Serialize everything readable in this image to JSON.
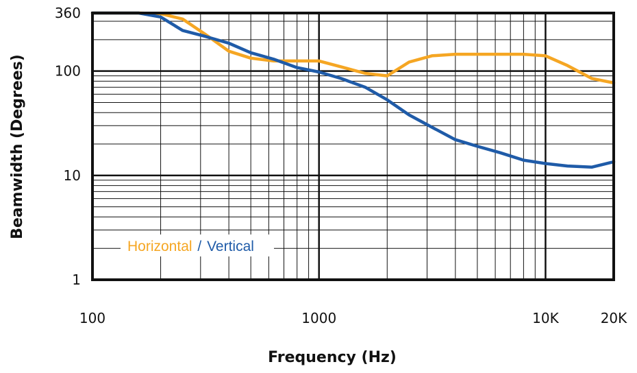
{
  "chart_data": {
    "type": "line",
    "title": "",
    "xlabel": "Frequency (Hz)",
    "ylabel": "Beamwidth (Degrees)",
    "x_scale": "log",
    "y_scale": "log",
    "xlim": [
      100,
      20000
    ],
    "ylim": [
      1,
      360
    ],
    "grid": true,
    "legend_position": "bottom-left",
    "x_ticks": [
      {
        "value": 100,
        "label": "100"
      },
      {
        "value": 1000,
        "label": "1000"
      },
      {
        "value": 10000,
        "label": "10K"
      },
      {
        "value": 20000,
        "label": "20K"
      }
    ],
    "y_ticks": [
      {
        "value": 1,
        "label": "1"
      },
      {
        "value": 10,
        "label": "10"
      },
      {
        "value": 100,
        "label": "100"
      },
      {
        "value": 360,
        "label": "360"
      }
    ],
    "series": [
      {
        "name": "Horizontal",
        "color": "#F5A623",
        "x": [
          100,
          160,
          200,
          250,
          315,
          400,
          500,
          630,
          800,
          1000,
          1250,
          1600,
          2000,
          2500,
          3150,
          4000,
          5000,
          6300,
          8000,
          10000,
          12500,
          16000,
          20000
        ],
        "y": [
          360,
          360,
          355,
          315,
          225,
          155,
          133,
          125,
          125,
          125,
          110,
          95,
          90,
          122,
          140,
          145,
          145,
          145,
          145,
          140,
          113,
          85,
          77
        ]
      },
      {
        "name": "Vertical",
        "color": "#1F5BA8",
        "x": [
          100,
          160,
          200,
          250,
          315,
          400,
          500,
          630,
          800,
          1000,
          1250,
          1600,
          2000,
          2500,
          3150,
          4000,
          5000,
          6300,
          8000,
          10000,
          12500,
          16000,
          20000
        ],
        "y": [
          360,
          360,
          330,
          245,
          215,
          185,
          150,
          130,
          108,
          98,
          85,
          70,
          53,
          38,
          29,
          22,
          19,
          16.5,
          14,
          13,
          12.3,
          12,
          13.5
        ]
      }
    ]
  },
  "legend": {
    "horizontal_label": "Horizontal",
    "separator": "/",
    "vertical_label": "Vertical"
  }
}
